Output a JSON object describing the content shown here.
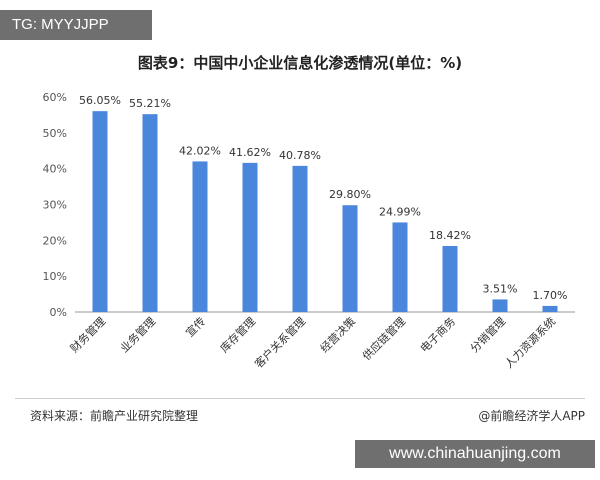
{
  "tag_label": "TG: MYYJJPP",
  "source_text": "资料来源：前瞻产业研究院整理",
  "credit_text": "@前瞻经济学人APP",
  "watermark_url": "www.chinahuanjing.com",
  "colors": {
    "bar": "#4a86db",
    "axis": "#999999",
    "grid": "#e6e6e6"
  },
  "chart_data": {
    "type": "bar",
    "title": "图表9：中国中小企业信息化渗透情况(单位：%)",
    "xlabel": "",
    "ylabel": "",
    "ylim": [
      0,
      60
    ],
    "yticks": [
      "0%",
      "10%",
      "20%",
      "30%",
      "40%",
      "50%",
      "60%"
    ],
    "categories": [
      "财务管理",
      "业务管理",
      "宣传",
      "库存管理",
      "客户关系管理",
      "经营决策",
      "供应链管理",
      "电子商务",
      "分销管理",
      "人力资源系统"
    ],
    "values": [
      56.05,
      55.21,
      42.02,
      41.62,
      40.78,
      29.8,
      24.99,
      18.42,
      3.51,
      1.7
    ],
    "value_labels": [
      "56.05%",
      "55.21%",
      "42.02%",
      "41.62%",
      "40.78%",
      "29.80%",
      "24.99%",
      "18.42%",
      "3.51%",
      "1.70%"
    ]
  }
}
